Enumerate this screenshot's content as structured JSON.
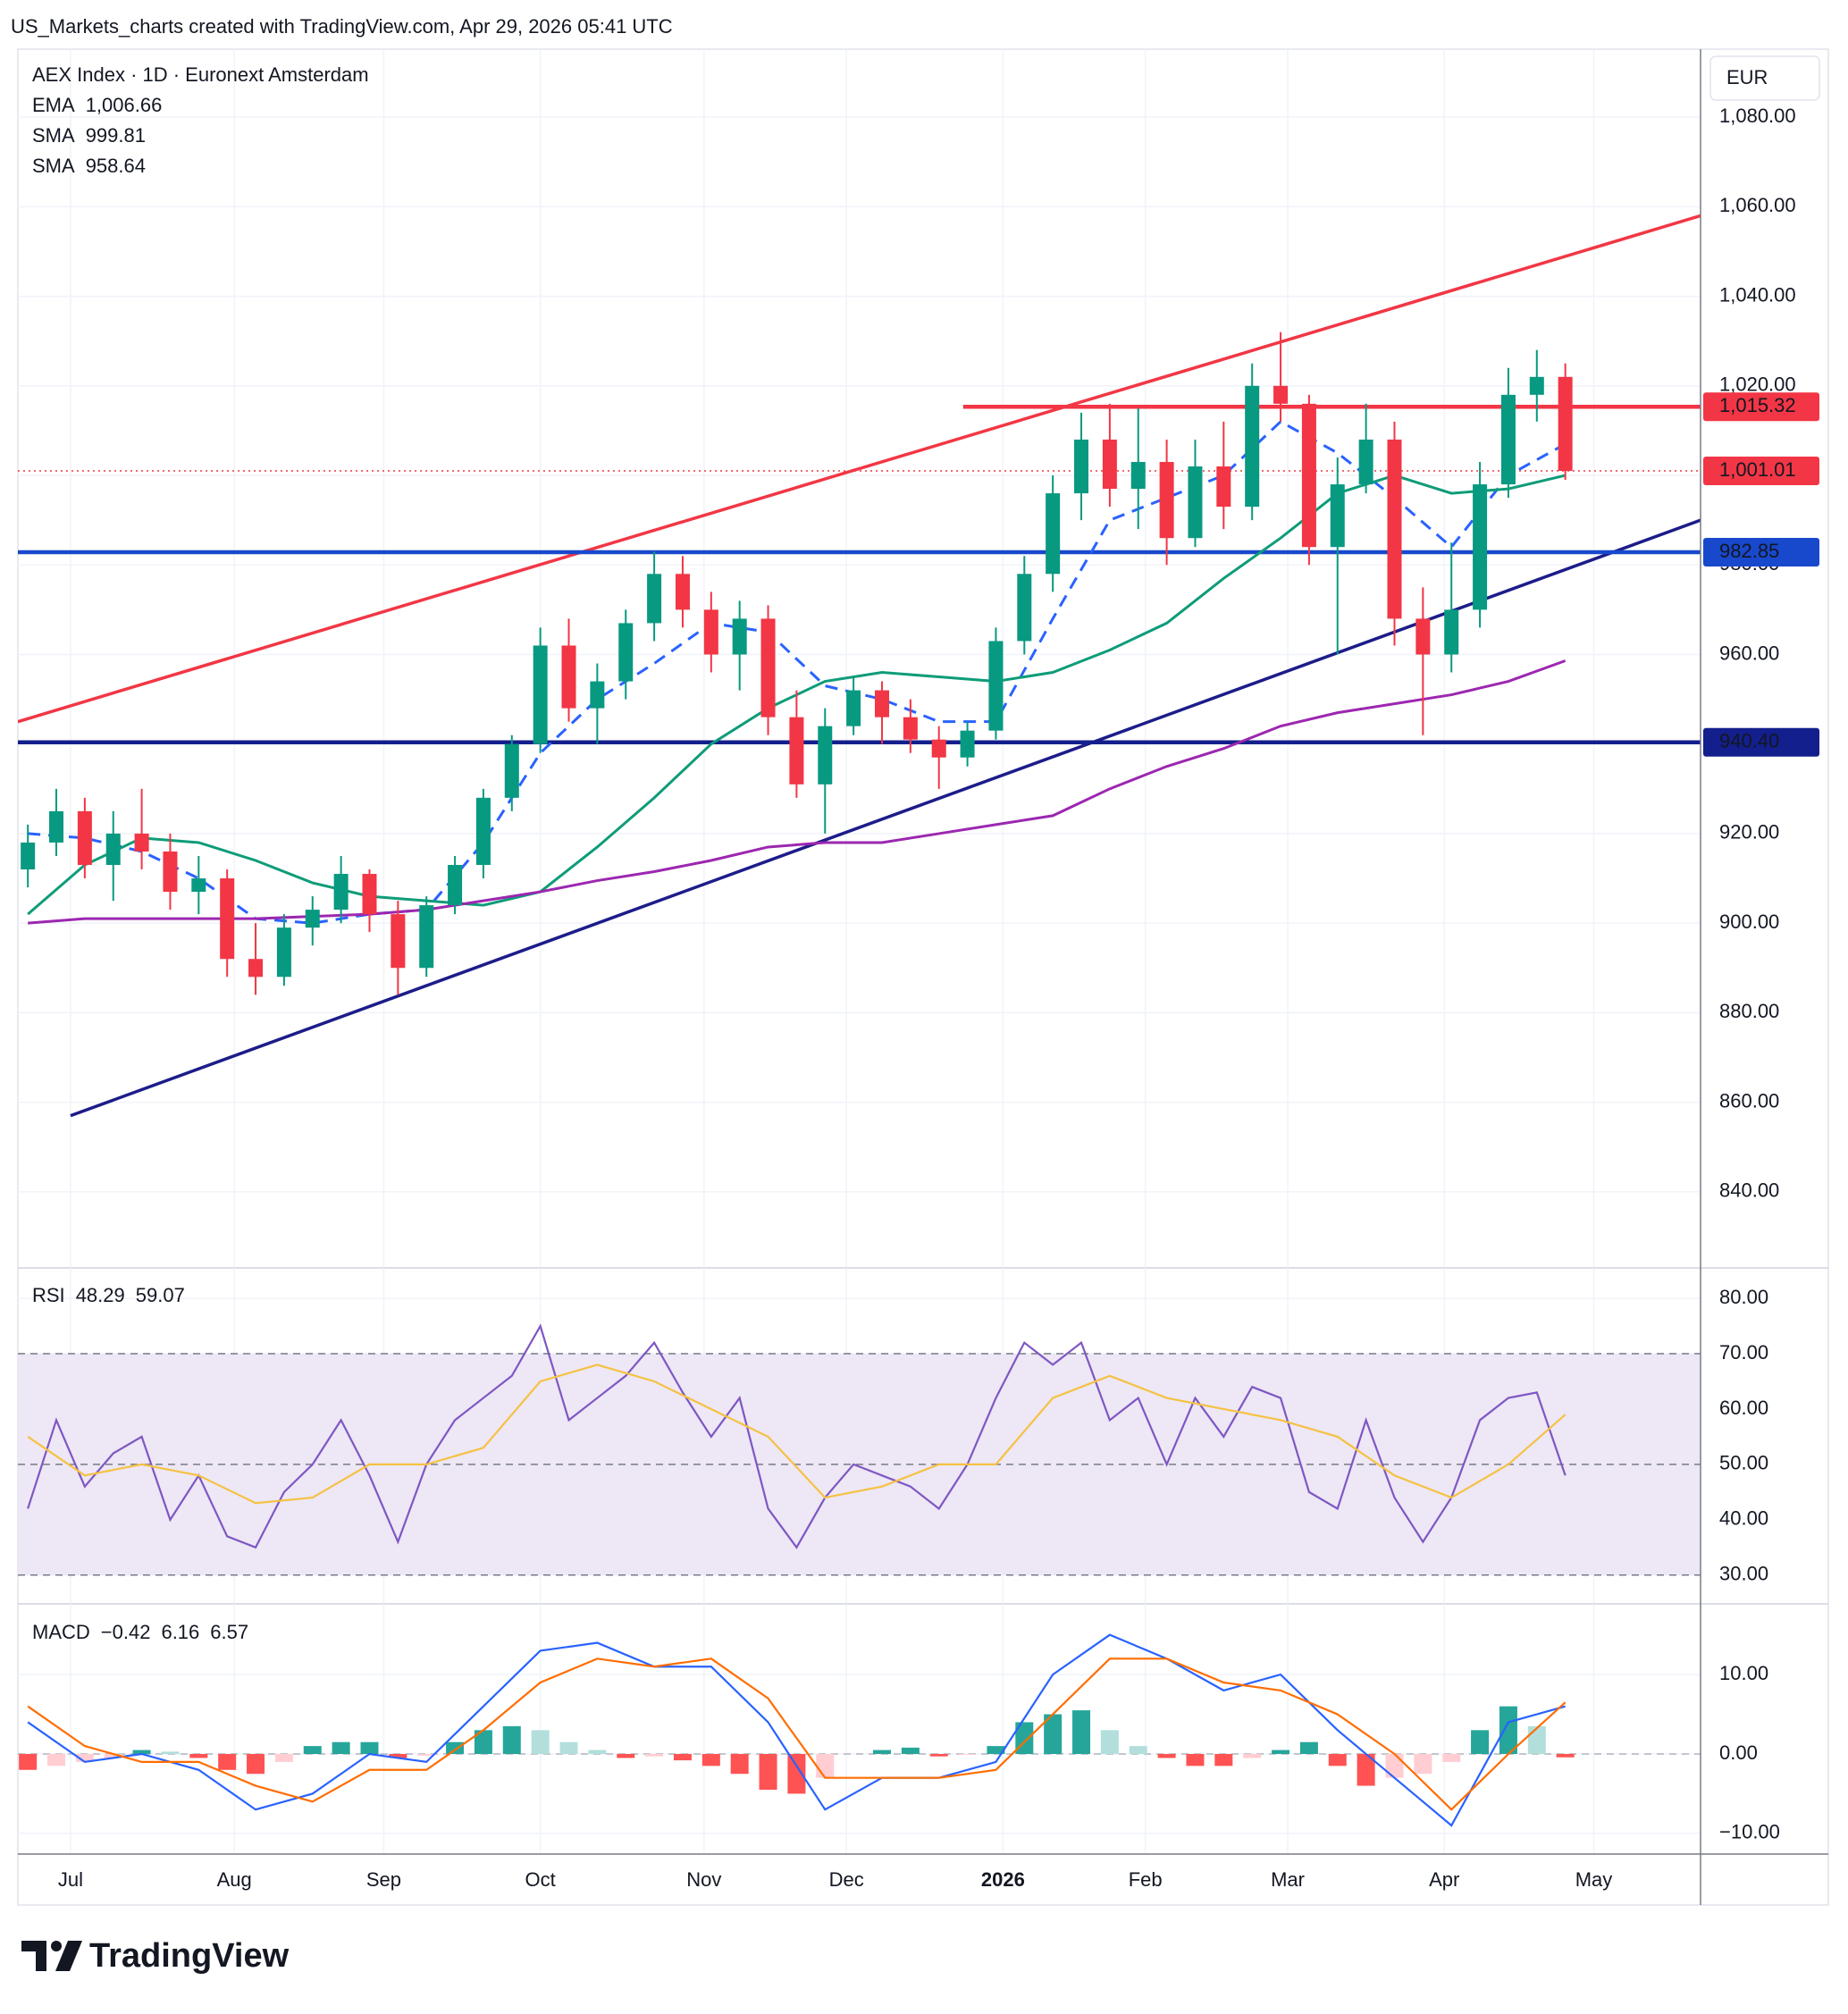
{
  "header": {
    "text": "US_Markets_charts created with TradingView.com, Apr 29, 2026 05:41 UTC"
  },
  "footer": {
    "brand": "TradingView"
  },
  "chart_data": [
    {
      "type": "candlestick",
      "title": "AEX Index · 1D · Euronext Amsterdam",
      "currency": "EUR",
      "up_color": "#089981",
      "down_color": "#f23645",
      "xlim": [
        -7.4,
        229
      ],
      "ylim": [
        823,
        1095.2
      ],
      "yticks": [
        {
          "value": 840,
          "label": "840.00"
        },
        {
          "value": 860,
          "label": "860.00"
        },
        {
          "value": 880,
          "label": "880.00"
        },
        {
          "value": 900,
          "label": "900.00"
        },
        {
          "value": 920,
          "label": "920.00"
        },
        {
          "value": 940,
          "label": "940.00"
        },
        {
          "value": 960,
          "label": "960.00"
        },
        {
          "value": 980,
          "label": "980.00"
        },
        {
          "value": 1000,
          "label": "1,000.00"
        },
        {
          "value": 1020,
          "label": "1,020.00"
        },
        {
          "value": 1040,
          "label": "1,040.00"
        },
        {
          "value": 1060,
          "label": "1,060.00"
        },
        {
          "value": 1080,
          "label": "1,080.00"
        }
      ],
      "grid": true,
      "x": [
        -6,
        -2,
        2,
        6,
        10,
        14,
        18,
        22,
        26,
        30,
        34,
        38,
        42,
        46,
        50,
        54,
        58,
        62,
        66,
        70,
        74,
        78,
        82,
        86,
        90,
        94,
        98,
        102,
        106,
        110,
        114,
        118,
        122,
        126,
        130,
        134,
        138,
        142,
        146,
        150,
        154,
        158,
        162,
        166,
        170,
        174,
        178,
        182,
        186,
        190,
        194,
        198,
        202,
        206,
        210
      ],
      "open": [
        912,
        918,
        925,
        913,
        920,
        916,
        907,
        910,
        892,
        888,
        899,
        903,
        911,
        902,
        890,
        904,
        913,
        928,
        940,
        962,
        948,
        954,
        967,
        978,
        970,
        960,
        968,
        946,
        931,
        944,
        952,
        946,
        941,
        937,
        943,
        963,
        978,
        996,
        1008,
        997,
        1003,
        986,
        1002,
        993,
        1020,
        1016,
        984,
        998,
        1008,
        968,
        960,
        970,
        998,
        1018,
        1022
      ],
      "high": [
        922,
        930,
        928,
        925,
        930,
        920,
        915,
        912,
        900,
        902,
        906,
        915,
        912,
        905,
        906,
        915,
        930,
        942,
        966,
        968,
        958,
        970,
        983,
        982,
        974,
        972,
        971,
        952,
        948,
        955,
        954,
        950,
        944,
        945,
        966,
        982,
        1000,
        1014,
        1016,
        1015,
        1008,
        1008,
        1012,
        1025,
        1032,
        1018,
        1004,
        1016,
        1012,
        975,
        985,
        1003,
        1024,
        1028,
        1025
      ],
      "low": [
        908,
        915,
        910,
        905,
        912,
        903,
        902,
        888,
        884,
        886,
        895,
        900,
        898,
        884,
        888,
        902,
        910,
        925,
        938,
        945,
        940,
        950,
        963,
        966,
        956,
        952,
        942,
        928,
        920,
        942,
        940,
        938,
        930,
        935,
        941,
        960,
        974,
        990,
        993,
        988,
        980,
        984,
        988,
        990,
        1012,
        980,
        960,
        996,
        962,
        942,
        956,
        966,
        995,
        1012,
        999
      ],
      "close": [
        918,
        925,
        913,
        920,
        916,
        907,
        910,
        892,
        888,
        899,
        903,
        911,
        902,
        890,
        904,
        913,
        928,
        940,
        962,
        948,
        954,
        967,
        978,
        970,
        960,
        968,
        946,
        931,
        944,
        952,
        946,
        941,
        937,
        943,
        963,
        978,
        996,
        1008,
        997,
        1003,
        986,
        1002,
        993,
        1020,
        1016,
        984,
        998,
        1008,
        968,
        960,
        970,
        998,
        1018,
        1022,
        1001
      ],
      "series": [
        {
          "name": "EMA",
          "color": "#2962ff",
          "dashed": true,
          "last": {
            "value": 1006.66,
            "label": "1,006.66"
          },
          "x": [
            -6,
            2,
            10,
            18,
            26,
            34,
            42,
            50,
            58,
            66,
            74,
            82,
            90,
            98,
            106,
            114,
            122,
            130,
            138,
            146,
            154,
            162,
            170,
            178,
            186,
            194,
            202,
            210
          ],
          "values": [
            920,
            919,
            916,
            910,
            901,
            900,
            902,
            903,
            918,
            938,
            950,
            958,
            967,
            965,
            953,
            950,
            945,
            945,
            968,
            990,
            995,
            1000,
            1012,
            1005,
            995,
            984,
            1000,
            1007
          ]
        },
        {
          "name": "SMA",
          "color": "#0e9c78",
          "dashed": false,
          "last": 999.81,
          "x": [
            -6,
            2,
            10,
            18,
            26,
            34,
            42,
            50,
            58,
            66,
            74,
            82,
            90,
            98,
            106,
            114,
            122,
            130,
            138,
            146,
            154,
            162,
            170,
            178,
            186,
            194,
            202,
            210
          ],
          "values": [
            902,
            913,
            919,
            918,
            914,
            909,
            906,
            905,
            904,
            907,
            917,
            928,
            940,
            948,
            954,
            956,
            955,
            954,
            956,
            961,
            967,
            977,
            986,
            996,
            1000,
            996,
            997,
            1000
          ]
        },
        {
          "name": "SMA",
          "color": "#9c27b0",
          "dashed": false,
          "last": 958.64,
          "x": [
            -6,
            2,
            10,
            18,
            26,
            34,
            42,
            50,
            58,
            66,
            74,
            82,
            90,
            98,
            106,
            114,
            122,
            130,
            138,
            146,
            154,
            162,
            170,
            178,
            186,
            194,
            202,
            210
          ],
          "values": [
            900,
            901,
            901,
            901,
            901,
            901.5,
            902,
            903,
            905,
            907,
            909.5,
            911.5,
            914,
            917,
            918,
            918,
            920,
            922,
            924,
            930,
            935,
            939,
            944,
            947,
            949,
            951,
            954,
            958.6
          ]
        }
      ],
      "trendlines": [
        {
          "x": [
            -7.4,
            229
          ],
          "y": [
            945,
            1058
          ],
          "color": "#f23645"
        },
        {
          "x": [
            0,
            229
          ],
          "y": [
            857,
            990
          ],
          "color": "#1c1c8a"
        }
      ],
      "levels": [
        {
          "value": 1015.32,
          "label": "1,015.32",
          "color": "#f23645",
          "from": 125.4
        },
        {
          "value": 982.85,
          "label": "982.85",
          "color": "#1848cc",
          "from": -7.4
        },
        {
          "value": 940.4,
          "label": "940.40",
          "color": "#131f8c",
          "from": -7.4
        }
      ],
      "last_price": {
        "value": 1001.01,
        "label": "1,001.01",
        "color": "#f23645"
      }
    },
    {
      "type": "line",
      "title": "RSI",
      "xlim": [
        -7.4,
        229
      ],
      "ylim": [
        24.8,
        85.5
      ],
      "yticks": [
        {
          "value": 30,
          "label": "30.00"
        },
        {
          "value": 40,
          "label": "40.00"
        },
        {
          "value": 50,
          "label": "50.00"
        },
        {
          "value": 60,
          "label": "60.00"
        },
        {
          "value": 70,
          "label": "70.00"
        },
        {
          "value": 80,
          "label": "80.00"
        }
      ],
      "band": [
        30,
        70
      ],
      "band_color": "#ede7f6",
      "levels": [
        30,
        50,
        70
      ],
      "series": [
        {
          "color": "#7e57c2",
          "last": 48.29,
          "x": [
            -6,
            -2,
            2,
            6,
            10,
            14,
            18,
            22,
            26,
            30,
            34,
            38,
            42,
            46,
            50,
            54,
            58,
            62,
            66,
            70,
            74,
            78,
            82,
            86,
            90,
            94,
            98,
            102,
            106,
            110,
            114,
            118,
            122,
            126,
            130,
            134,
            138,
            142,
            146,
            150,
            154,
            158,
            162,
            166,
            170,
            174,
            178,
            182,
            186,
            190,
            194,
            198,
            202,
            206,
            210
          ],
          "values": [
            42,
            58,
            46,
            52,
            55,
            40,
            48,
            37,
            35,
            45,
            50,
            58,
            48,
            36,
            50,
            58,
            62,
            66,
            75,
            58,
            62,
            66,
            72,
            63,
            55,
            62,
            42,
            35,
            44,
            50,
            48,
            46,
            42,
            50,
            62,
            72,
            68,
            72,
            58,
            62,
            50,
            62,
            55,
            64,
            62,
            45,
            42,
            58,
            44,
            36,
            44,
            58,
            62,
            63,
            48
          ]
        },
        {
          "color": "#f5c242",
          "last": 59.07,
          "x": [
            -6,
            2,
            10,
            18,
            26,
            34,
            42,
            50,
            58,
            66,
            74,
            82,
            90,
            98,
            106,
            114,
            122,
            130,
            138,
            146,
            154,
            162,
            170,
            178,
            186,
            194,
            202,
            210
          ],
          "values": [
            55,
            48,
            50,
            48,
            43,
            44,
            50,
            50,
            53,
            65,
            68,
            65,
            60,
            55,
            44,
            46,
            50,
            50,
            62,
            66,
            62,
            60,
            58,
            55,
            48,
            44,
            50,
            59
          ]
        }
      ]
    },
    {
      "type": "macd",
      "title": "MACD",
      "xlim": [
        -7.4,
        229
      ],
      "ylim": [
        -12.6,
        18.9
      ],
      "yticks": [
        {
          "value": -10,
          "label": "−10.00"
        },
        {
          "value": 0,
          "label": "0.00"
        },
        {
          "value": 10,
          "label": "10.00"
        }
      ],
      "xticks": [
        {
          "value": 0,
          "label": "Jul"
        },
        {
          "value": 23,
          "label": "Aug"
        },
        {
          "value": 44,
          "label": "Sep"
        },
        {
          "value": 66,
          "label": "Oct"
        },
        {
          "value": 89,
          "label": "Nov"
        },
        {
          "value": 109,
          "label": "Dec"
        },
        {
          "value": 131,
          "label": "2026"
        },
        {
          "value": 151,
          "label": "Feb"
        },
        {
          "value": 171,
          "label": "Mar"
        },
        {
          "value": 193,
          "label": "Apr"
        },
        {
          "value": 214,
          "label": "May"
        }
      ],
      "levels": [
        0
      ],
      "histogram": {
        "colors": [
          "#26a69a",
          "#b2dfdb",
          "#ffcdd2",
          "#ff5252"
        ],
        "last": {
          "value": -0.42,
          "label": "−0.42"
        },
        "last_color": "#f23645",
        "x": [
          -6,
          -2,
          2,
          6,
          10,
          14,
          18,
          22,
          26,
          30,
          34,
          38,
          42,
          46,
          50,
          54,
          58,
          62,
          66,
          70,
          74,
          78,
          82,
          86,
          90,
          94,
          98,
          102,
          106,
          110,
          114,
          118,
          122,
          126,
          130,
          134,
          138,
          142,
          146,
          150,
          154,
          158,
          162,
          166,
          170,
          174,
          178,
          182,
          186,
          190,
          194,
          198,
          202,
          206,
          210
        ],
        "values": [
          -2,
          -1.5,
          -1,
          -0.5,
          0.5,
          0.3,
          -0.5,
          -2,
          -2.5,
          -1,
          1,
          1.5,
          1.5,
          -0.5,
          -0.2,
          1.5,
          3,
          3.5,
          3,
          1.5,
          0.5,
          -0.5,
          -0.3,
          -0.8,
          -1.5,
          -2.5,
          -4.5,
          -5,
          -3,
          0,
          0.5,
          0.8,
          -0.3,
          -0.1,
          1,
          4,
          5,
          5.5,
          3,
          1,
          -0.5,
          -1.5,
          -1.5,
          -0.5,
          0.5,
          1.5,
          -1.5,
          -4,
          -3,
          -2.5,
          -1,
          3,
          6,
          3.5,
          -0.42
        ]
      },
      "series": [
        {
          "color": "#2962ff",
          "last": 6.16,
          "x": [
            -6,
            2,
            10,
            18,
            26,
            34,
            42,
            50,
            58,
            66,
            74,
            82,
            90,
            98,
            106,
            114,
            122,
            130,
            138,
            146,
            154,
            162,
            170,
            178,
            186,
            194,
            202,
            210
          ],
          "values": [
            4,
            -1,
            0,
            -2,
            -7,
            -5,
            0,
            -1,
            6,
            13,
            14,
            11,
            11,
            4,
            -7,
            -3,
            -3,
            -1,
            10,
            15,
            12,
            8,
            10,
            3,
            -3,
            -9,
            4,
            6
          ]
        },
        {
          "color": "#ff6d00",
          "last": 6.57,
          "x": [
            -6,
            2,
            10,
            18,
            26,
            34,
            42,
            50,
            58,
            66,
            74,
            82,
            90,
            98,
            106,
            114,
            122,
            130,
            138,
            146,
            154,
            162,
            170,
            178,
            186,
            194,
            202,
            210
          ],
          "values": [
            6,
            1,
            -1,
            -1,
            -4,
            -6,
            -2,
            -2,
            3,
            9,
            12,
            11,
            12,
            7,
            -3,
            -3,
            -3,
            -2,
            5,
            12,
            12,
            9,
            8,
            5,
            0,
            -7,
            0,
            6.5
          ]
        }
      ]
    }
  ]
}
